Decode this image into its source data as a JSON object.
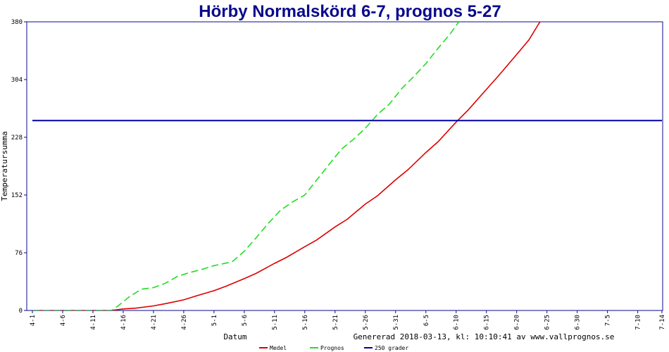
{
  "chart_data": {
    "type": "line",
    "title": "Hörby Normalskörd 6-7, prognos 5-27",
    "xlabel": "Datum",
    "ylabel": "Temperatursumma",
    "ylim": [
      0,
      380
    ],
    "y_ticks": [
      0,
      76,
      152,
      228,
      304,
      380
    ],
    "x_ticks": [
      "4-1",
      "4-6",
      "4-11",
      "4-16",
      "4-21",
      "4-26",
      "5-1",
      "5-6",
      "5-11",
      "5-16",
      "5-21",
      "5-26",
      "5-31",
      "6-5",
      "6-10",
      "6-15",
      "6-20",
      "6-25",
      "6-30",
      "7-5",
      "7-10",
      "7-14"
    ],
    "x_tick_days": [
      0,
      5,
      10,
      15,
      20,
      25,
      30,
      35,
      40,
      45,
      50,
      55,
      60,
      65,
      70,
      75,
      80,
      85,
      90,
      95,
      100,
      104
    ],
    "generated_text": "Genererad 2018-03-13, kl: 10:10:41 av www.vallprognos.se",
    "series": [
      {
        "name": "Medel",
        "color": "#dd0000",
        "style": "solid",
        "x": [
          "4-1",
          "4-14",
          "4-16",
          "4-18",
          "4-21",
          "4-23",
          "4-26",
          "4-28",
          "5-1",
          "5-3",
          "5-6",
          "5-8",
          "5-11",
          "5-13",
          "5-16",
          "5-18",
          "5-21",
          "5-23",
          "5-26",
          "5-28",
          "5-31",
          "6-2",
          "6-5",
          "6-7",
          "6-10",
          "6-12",
          "6-15",
          "6-17",
          "6-20",
          "6-22",
          "6-24"
        ],
        "y": [
          0,
          0,
          2,
          3,
          6,
          9,
          14,
          19,
          26,
          32,
          42,
          49,
          62,
          70,
          84,
          93,
          110,
          120,
          140,
          151,
          172,
          185,
          208,
          222,
          248,
          264,
          291,
          309,
          337,
          356,
          382
        ]
      },
      {
        "name": "Prognos",
        "color": "#22dd22",
        "style": "dashed",
        "x": [
          "4-1",
          "4-14",
          "4-15",
          "4-17",
          "4-19",
          "4-21",
          "4-23",
          "4-25",
          "4-27",
          "4-29",
          "5-1",
          "5-4",
          "5-6",
          "5-8",
          "5-10",
          "5-12",
          "5-14",
          "5-16",
          "5-18",
          "5-20",
          "5-22",
          "5-24",
          "5-26",
          "5-28",
          "5-30",
          "6-1",
          "6-3",
          "6-5",
          "6-7",
          "6-9",
          "6-11"
        ],
        "y": [
          0,
          0,
          5,
          18,
          28,
          30,
          36,
          45,
          50,
          54,
          59,
          64,
          78,
          96,
          115,
          132,
          143,
          152,
          172,
          192,
          212,
          225,
          240,
          258,
          272,
          292,
          308,
          325,
          345,
          364,
          386
        ]
      },
      {
        "name": "250 grader",
        "color": "#0000aa",
        "style": "solid",
        "x": [
          "4-1",
          "7-14"
        ],
        "y": [
          250,
          250
        ]
      }
    ],
    "legend": {
      "placement": "bottom-center",
      "items": [
        "Medel",
        "Prognos",
        "250 grader"
      ]
    },
    "grid": false
  }
}
